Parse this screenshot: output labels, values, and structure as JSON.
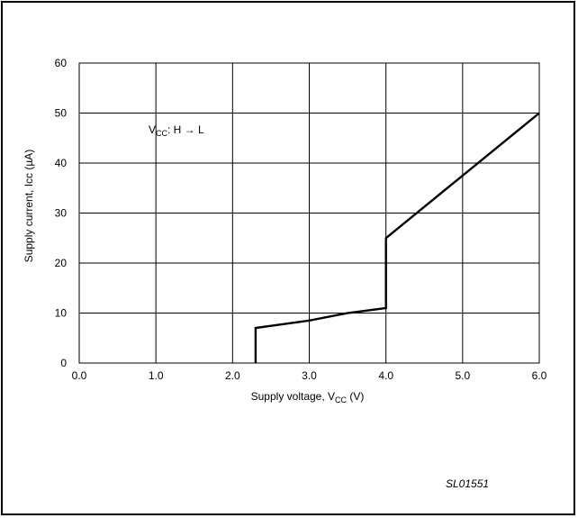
{
  "chart_data": {
    "type": "line",
    "title": "",
    "xlabel": {
      "main": "Supply voltage, V",
      "sub": "CC",
      "unit": " (V)"
    },
    "ylabel": "Supply current, Icc (µA)",
    "xlim": [
      0,
      6
    ],
    "ylim": [
      0,
      60
    ],
    "x_ticks": [
      "0.0",
      "1.0",
      "2.0",
      "3.0",
      "4.0",
      "5.0",
      "6.0"
    ],
    "y_ticks": [
      "0",
      "10",
      "20",
      "30",
      "40",
      "50",
      "60"
    ],
    "grid": true,
    "series": [
      {
        "x": [
          2.3,
          2.3,
          3.0,
          3.5,
          4.0,
          4.0,
          6.0
        ],
        "y": [
          0,
          7,
          8.5,
          10,
          11,
          25,
          50
        ],
        "color": "#000000"
      }
    ],
    "annotation": {
      "main": "V",
      "sub": "CC",
      "rest": ": H → L"
    },
    "figure_code": "SL01551"
  }
}
